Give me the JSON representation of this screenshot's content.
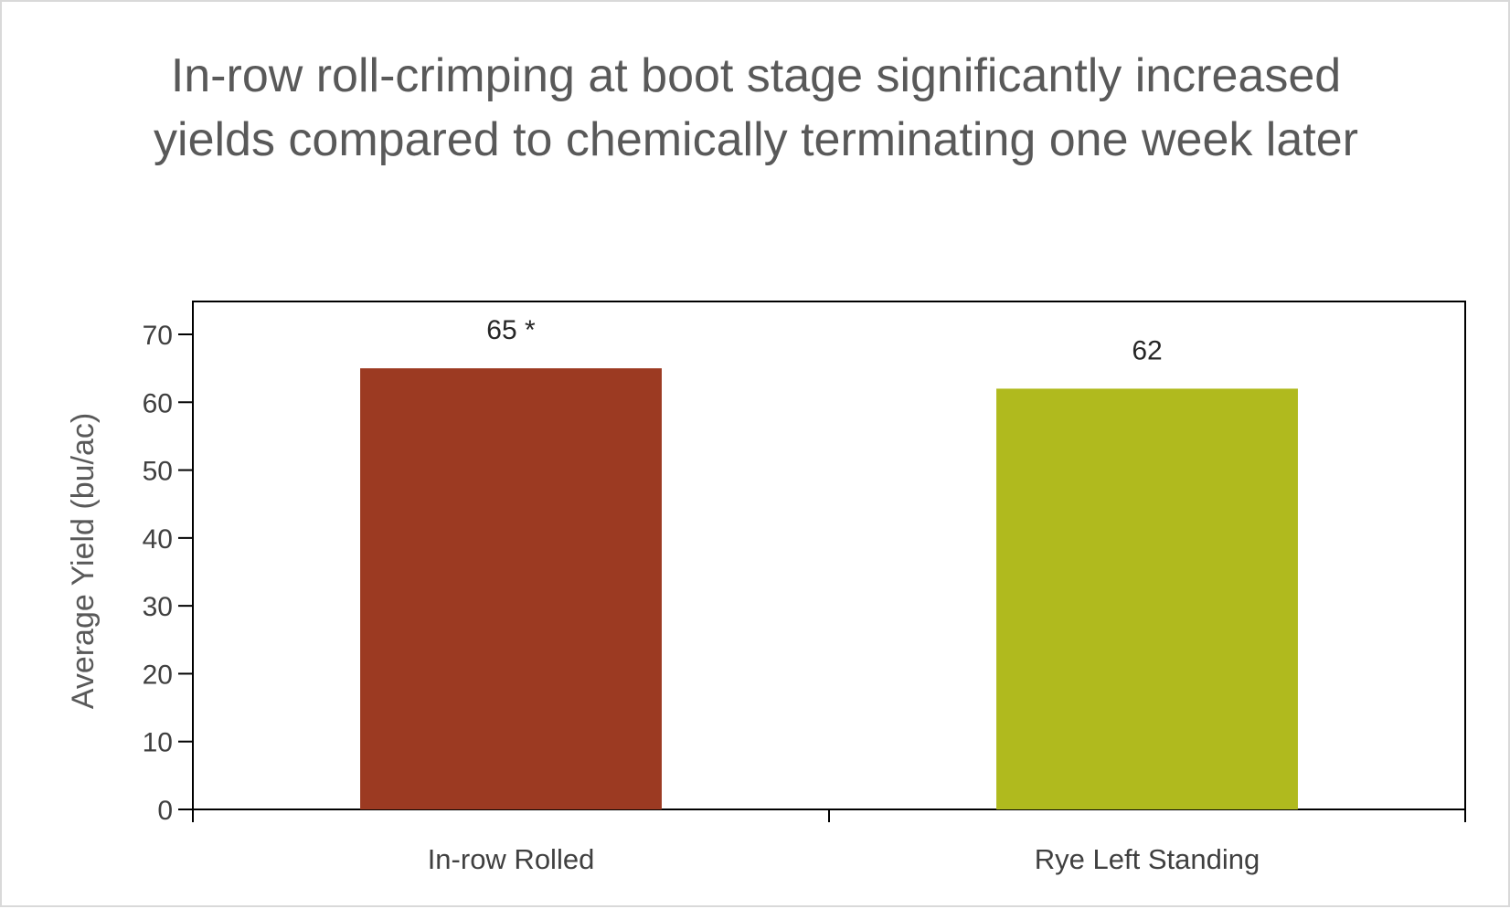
{
  "chart_data": {
    "type": "bar",
    "title": "In-row roll-crimping at boot stage significantly increased yields compared to chemically terminating one week later",
    "xlabel": "",
    "ylabel": "Average Yield (bu/ac)",
    "ylim": [
      0,
      70
    ],
    "y_ticks": [
      0,
      10,
      20,
      30,
      40,
      50,
      60,
      70
    ],
    "categories": [
      "In-row Rolled",
      "Rye Left Standing"
    ],
    "values": [
      65,
      62
    ],
    "data_labels": [
      "65 *",
      "62"
    ],
    "bar_colors": [
      "#9c3a22",
      "#b0ba1e"
    ],
    "grid": false,
    "legend": "none"
  }
}
